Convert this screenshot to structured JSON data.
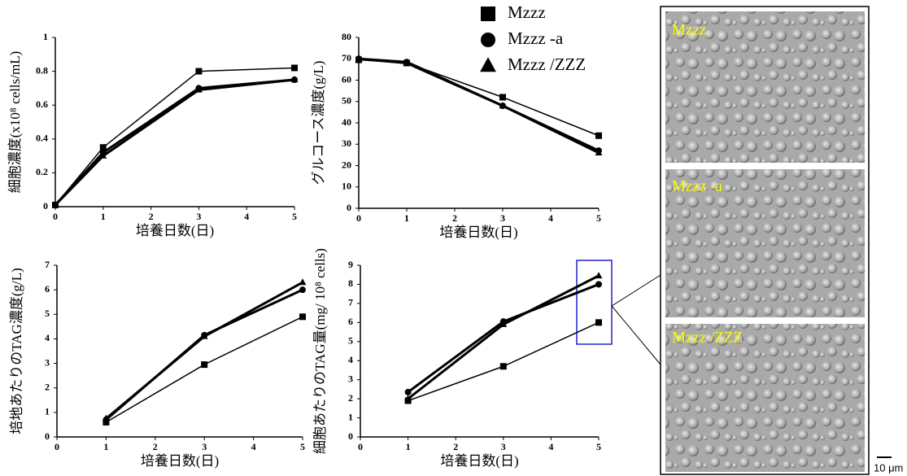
{
  "chart_data": [
    {
      "type": "line",
      "y_label": "細胞濃度(x10⁸ cells/mL)",
      "x_label": "培養日数(日)",
      "x": [
        0,
        1,
        3,
        5
      ],
      "xlim": [
        0,
        5
      ],
      "xticks": [
        0,
        1,
        2,
        3,
        4,
        5
      ],
      "ylim": [
        0,
        1
      ],
      "yticks": [
        0,
        0.2,
        0.4,
        0.6,
        0.8,
        1
      ],
      "series": [
        {
          "name": "Mzzz",
          "color": "#000000",
          "marker": "square",
          "line_width": 1.5,
          "values": [
            0.01,
            0.35,
            0.8,
            0.82
          ]
        },
        {
          "name": "Mzzz -a",
          "color": "#000000",
          "marker": "circle",
          "line_width": 3,
          "values": [
            0.01,
            0.32,
            0.7,
            0.75
          ]
        },
        {
          "name": "Mzzz /ZZZ",
          "color": "#000000",
          "marker": "triangle",
          "line_width": 3,
          "values": [
            0.01,
            0.3,
            0.69,
            0.75
          ]
        }
      ]
    },
    {
      "type": "line",
      "y_label": "グルコース濃度(g/L)",
      "x_label": "培養日数(日)",
      "x": [
        0,
        1,
        3,
        5
      ],
      "xlim": [
        0,
        5
      ],
      "xticks": [
        0,
        1,
        2,
        3,
        4,
        5
      ],
      "ylim": [
        0,
        80
      ],
      "yticks": [
        0,
        10,
        20,
        30,
        40,
        50,
        60,
        70,
        80
      ],
      "series": [
        {
          "name": "Mzzz",
          "color": "#000000",
          "marker": "square",
          "line_width": 1.5,
          "values": [
            69.5,
            68,
            52,
            34
          ]
        },
        {
          "name": "Mzzz -a",
          "color": "#000000",
          "marker": "circle",
          "line_width": 3,
          "values": [
            70,
            68.5,
            48,
            27
          ]
        },
        {
          "name": "Mzzz /ZZZ",
          "color": "#000000",
          "marker": "triangle",
          "line_width": 3,
          "values": [
            70,
            68,
            48,
            26
          ]
        }
      ]
    },
    {
      "type": "line",
      "y_label": "培地あたりのTAG濃度(g/L)",
      "x_label": "培養日数(日)",
      "x": [
        1,
        3,
        5
      ],
      "xlim": [
        0,
        5
      ],
      "xticks": [
        0,
        1,
        2,
        3,
        4,
        5
      ],
      "ylim": [
        0,
        7
      ],
      "yticks": [
        0,
        1,
        2,
        3,
        4,
        5,
        6,
        7
      ],
      "series": [
        {
          "name": "Mzzz",
          "color": "#000000",
          "marker": "square",
          "line_width": 1.5,
          "values": [
            0.6,
            2.95,
            4.9
          ]
        },
        {
          "name": "Mzzz -a",
          "color": "#000000",
          "marker": "circle",
          "line_width": 3,
          "values": [
            0.7,
            4.15,
            6.0
          ]
        },
        {
          "name": "Mzzz /ZZZ",
          "color": "#000000",
          "marker": "triangle",
          "line_width": 3,
          "values": [
            0.75,
            4.1,
            6.3
          ]
        }
      ]
    },
    {
      "type": "line",
      "y_label": "細胞あたりのTAG量(mg/ 10⁸ cells)",
      "x_label": "培養日数(日)",
      "x": [
        1,
        3,
        5
      ],
      "xlim": [
        0,
        5
      ],
      "xticks": [
        0,
        1,
        2,
        3,
        4,
        5
      ],
      "ylim": [
        0,
        9
      ],
      "yticks": [
        0,
        1,
        2,
        3,
        4,
        5,
        6,
        7,
        8,
        9
      ],
      "series": [
        {
          "name": "Mzzz",
          "color": "#000000",
          "marker": "square",
          "line_width": 1.5,
          "values": [
            1.9,
            3.7,
            6.0
          ]
        },
        {
          "name": "Mzzz -a",
          "color": "#000000",
          "marker": "circle",
          "line_width": 3,
          "values": [
            2.35,
            6.05,
            8.0
          ]
        },
        {
          "name": "Mzzz /ZZZ",
          "color": "#000000",
          "marker": "triangle",
          "line_width": 3,
          "values": [
            2.0,
            5.9,
            8.45
          ]
        }
      ]
    }
  ],
  "images": [
    {
      "label": "Mzzz"
    },
    {
      "label": "Mzzz -a"
    },
    {
      "label": "Mzzz /ZZZ"
    }
  ],
  "scale_bar": "10 μm"
}
